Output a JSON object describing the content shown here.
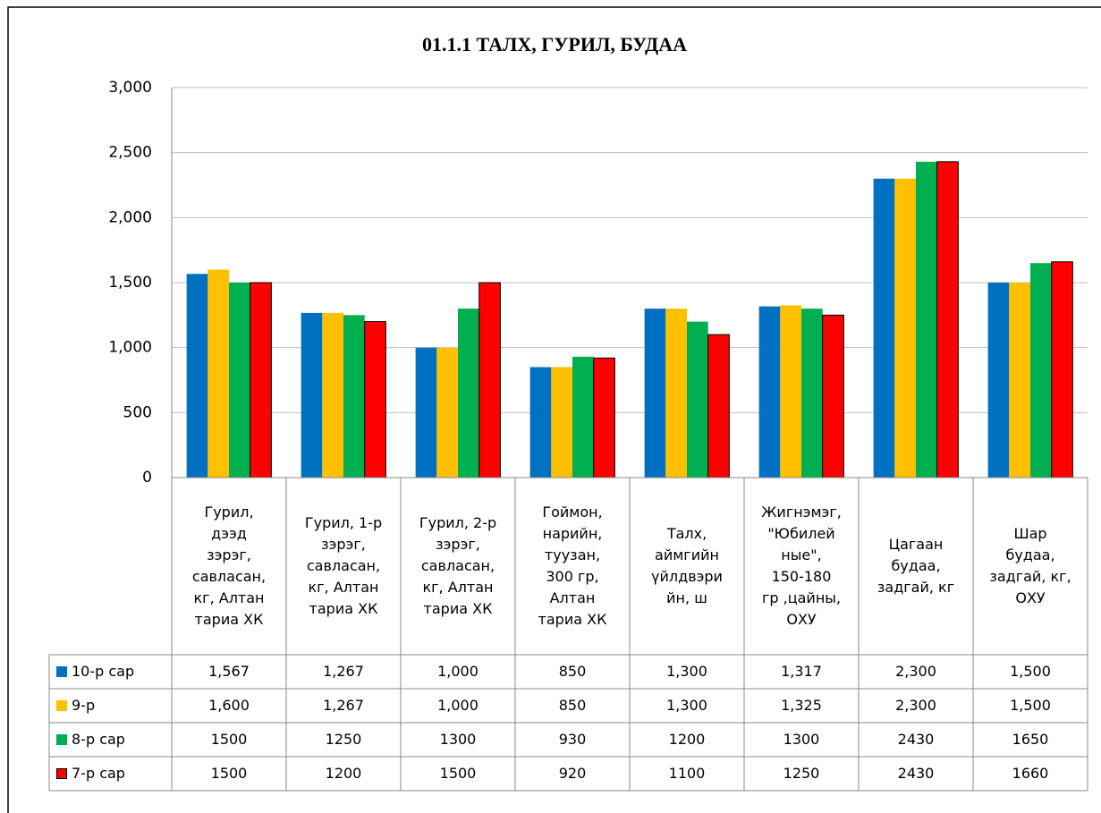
{
  "chart_data": {
    "type": "bar",
    "title": "01.1.1  ТАЛХ, ГУРИЛ, БУДАА",
    "categories": [
      "Гурил,\nдээд\nзэрэг,\nсавласан,\nкг, Алтан\nтариа ХК",
      "Гурил, 1-р\nзэрэг,\nсавласан,\nкг, Алтан\nтариа ХК",
      "Гурил, 2-р\nзэрэг,\nсавласан,\nкг, Алтан\nтариа ХК",
      "Гоймон,\nнарийн,\nтуузан,\n300 гр,\nАлтан\nтариа ХК",
      "Талх,\nаймгийн\nүйлдвэри\nйн, ш",
      "Жигнэмэг,\n\"Юбилей\nные\",\n150-180\nгр ,цайны,\nОХУ",
      "Цагаан\nбудаа,\nзадгай, кг",
      "Шар\nбудаа,\nзадгай, кг,\nОХУ"
    ],
    "series": [
      {
        "name": "10-р сар",
        "color": "#0070c0",
        "values": [
          1567,
          1267,
          1000,
          850,
          1300,
          1317,
          2300,
          1500
        ],
        "value_labels": [
          "1,567",
          "1,267",
          "1,000",
          "850",
          "1,300",
          "1,317",
          "2,300",
          "1,500"
        ]
      },
      {
        "name": "9-р",
        "color": "#ffc000",
        "values": [
          1600,
          1267,
          1000,
          850,
          1300,
          1325,
          2300,
          1500
        ],
        "value_labels": [
          "1,600",
          "1,267",
          "1,000",
          "850",
          "1,300",
          "1,325",
          "2,300",
          "1,500"
        ]
      },
      {
        "name": "8-р сар",
        "color": "#00b050",
        "values": [
          1500,
          1250,
          1300,
          930,
          1200,
          1300,
          2430,
          1650
        ]
      },
      {
        "name": "7-р сар",
        "color": "#ff0000",
        "values": [
          1500,
          1200,
          1500,
          920,
          1100,
          1250,
          2430,
          1660
        ]
      }
    ],
    "ylim": [
      0,
      3000
    ],
    "yticks": [
      0,
      500,
      {
        "value": 1000,
        "label": "1,000"
      },
      {
        "value": 1500,
        "label": "1,500"
      },
      {
        "value": 2000,
        "label": "2,000"
      },
      {
        "value": 2500,
        "label": "2,500"
      },
      {
        "value": 3000,
        "label": "3,000"
      }
    ],
    "grid": true
  }
}
